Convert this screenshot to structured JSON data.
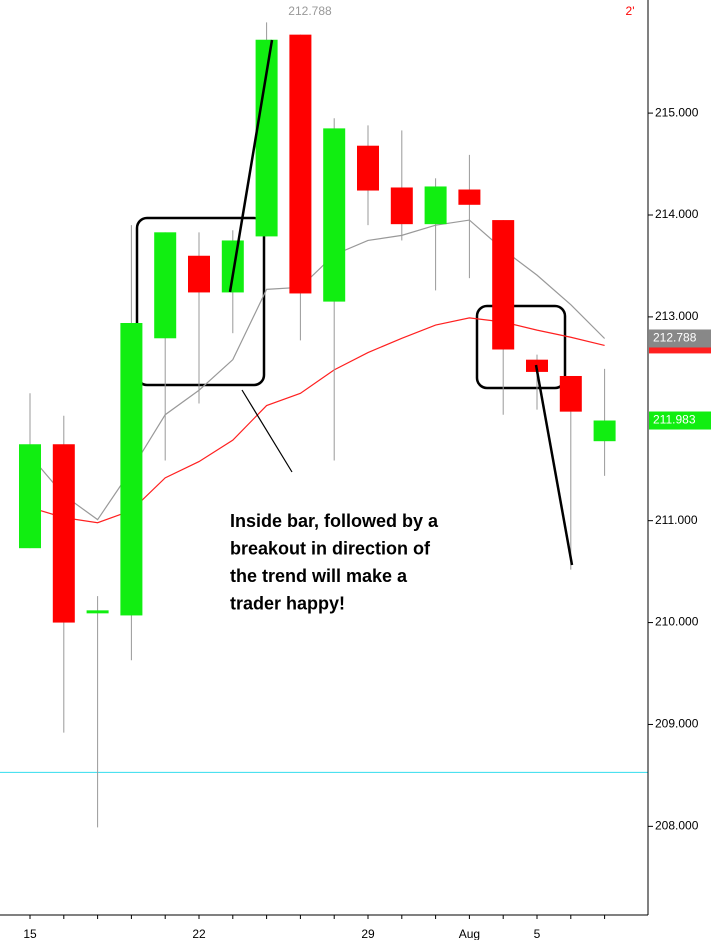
{
  "chart_data": {
    "type": "candlestick",
    "categories": [
      "15",
      null,
      null,
      null,
      null,
      "22",
      null,
      null,
      null,
      null,
      "29",
      null,
      null,
      "Aug",
      null,
      "5",
      null,
      null
    ],
    "open": [
      210.73,
      211.75,
      210.1,
      210.07,
      212.79,
      213.6,
      213.24,
      213.79,
      215.77,
      213.15,
      214.68,
      214.27,
      213.91,
      214.25,
      213.95,
      212.58,
      212.42,
      211.78
    ],
    "high": [
      212.25,
      212.03,
      210.26,
      213.9,
      213.83,
      213.83,
      213.85,
      215.89,
      215.77,
      214.95,
      214.88,
      214.83,
      214.36,
      214.59,
      213.95,
      212.63,
      212.42,
      212.49
    ],
    "low": [
      210.73,
      208.92,
      207.99,
      209.63,
      211.59,
      212.15,
      212.84,
      213.79,
      212.77,
      211.59,
      213.9,
      213.75,
      213.26,
      213.38,
      212.04,
      212.09,
      210.52,
      211.44
    ],
    "close": [
      211.75,
      210.0,
      210.12,
      212.94,
      213.83,
      213.24,
      213.75,
      215.72,
      213.23,
      214.85,
      214.24,
      213.91,
      214.28,
      214.1,
      212.68,
      212.46,
      212.07,
      211.983
    ],
    "up_color": "#11ee11",
    "down_color": "#ff0000",
    "lines": [
      {
        "color": "#999999",
        "values": [
          211.64,
          211.25,
          211.01,
          211.5,
          212.04,
          212.28,
          212.58,
          213.27,
          213.29,
          213.61,
          213.75,
          213.8,
          213.9,
          213.95,
          213.66,
          213.41,
          213.12,
          212.788
        ]
      },
      {
        "color": "#ff2020",
        "values": [
          211.13,
          211.03,
          210.98,
          211.1,
          211.42,
          211.58,
          211.79,
          212.13,
          212.25,
          212.48,
          212.65,
          212.79,
          212.92,
          212.99,
          212.95,
          212.87,
          212.8,
          212.72
        ]
      }
    ],
    "hline": {
      "value": 208.53,
      "color": "#33ddee"
    },
    "ylim": [
      207.13,
      216.11
    ],
    "yticks": [
      {
        "value": 208,
        "label": "208.000"
      },
      {
        "value": 209,
        "label": "209.000"
      },
      {
        "value": 210,
        "label": "210.000"
      },
      {
        "value": 211,
        "label": "211.000"
      },
      {
        "value": 213,
        "label": "213.000"
      },
      {
        "value": 214,
        "label": "214.000"
      },
      {
        "value": 215,
        "label": "215.000"
      }
    ],
    "price_labels": [
      {
        "value": 212.788,
        "color": "#888888"
      },
      {
        "value": 211.983,
        "color": "#11ee11"
      }
    ],
    "top_labels": [
      {
        "text": "212.788",
        "color": "#999999"
      },
      {
        "text": "2'",
        "color": "#ff0000"
      }
    ],
    "annotation": [
      "Inside bar, followed by a",
      "breakout in direction of",
      "the trend will make a",
      "trader happy!"
    ]
  }
}
